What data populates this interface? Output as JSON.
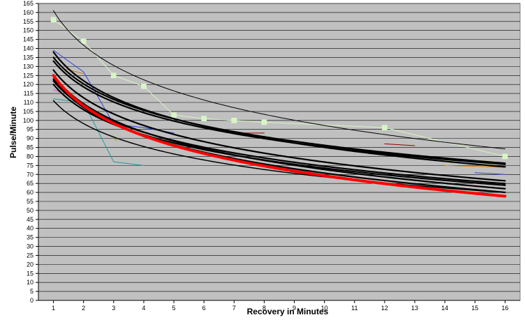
{
  "chart_data": {
    "type": "line",
    "title": "",
    "xlabel": "Recovery in Minutes",
    "ylabel": "Pulse/Minute",
    "xlim": [
      0.5,
      16.5
    ],
    "ylim": [
      0,
      165
    ],
    "x_ticks": [
      1,
      2,
      3,
      4,
      5,
      6,
      7,
      8,
      9,
      10,
      11,
      12,
      13,
      14,
      15,
      16
    ],
    "y_ticks": [
      0,
      5,
      10,
      15,
      20,
      25,
      30,
      35,
      40,
      45,
      50,
      55,
      60,
      65,
      70,
      75,
      80,
      85,
      90,
      95,
      100,
      105,
      110,
      115,
      120,
      125,
      130,
      135,
      140,
      145,
      150,
      155,
      160,
      165
    ],
    "grid": true,
    "legend": "none",
    "colors": {
      "plot_bg": "#c0c0c0",
      "grid": "#000000"
    },
    "series": [
      {
        "style": "raw",
        "color": "#d6f5c2",
        "width": 1,
        "marker": "square",
        "x": [
          1,
          2,
          3,
          4,
          5,
          6,
          7,
          8,
          12,
          16
        ],
        "y": [
          156,
          144,
          125,
          119,
          103,
          101,
          100,
          99,
          96,
          80
        ]
      },
      {
        "style": "raw",
        "color": "#2f3fe0",
        "width": 1,
        "x": [
          1,
          2,
          3,
          4,
          5
        ],
        "y": [
          139,
          127,
          98,
          96,
          93
        ]
      },
      {
        "style": "raw",
        "color": "#1b9a9a",
        "width": 1,
        "x": [
          1,
          2,
          3,
          4
        ],
        "y": [
          112,
          110,
          77,
          75
        ]
      },
      {
        "style": "raw",
        "color": "#c07010",
        "width": 1,
        "x": [
          1.3,
          2
        ],
        "y": [
          129,
          126
        ]
      },
      {
        "style": "raw",
        "color": "#e040e0",
        "width": 1,
        "x": [
          1,
          1.2
        ],
        "y": [
          117,
          116
        ]
      },
      {
        "style": "raw",
        "color": "#a0a000",
        "width": 1,
        "x": [
          3,
          3.1
        ],
        "y": [
          90,
          89
        ]
      },
      {
        "style": "raw",
        "color": "#8b0000",
        "width": 1,
        "x": [
          7,
          8
        ],
        "y": [
          93,
          93
        ]
      },
      {
        "style": "raw",
        "color": "#8b0000",
        "width": 1,
        "x": [
          12,
          13
        ],
        "y": [
          87,
          86
        ]
      },
      {
        "style": "raw",
        "color": "#e08000",
        "width": 1,
        "x": [
          14,
          16
        ],
        "y": [
          75,
          74
        ]
      },
      {
        "style": "raw",
        "color": "#2f3fe0",
        "width": 1,
        "x": [
          15,
          16
        ],
        "y": [
          71,
          70
        ]
      },
      {
        "style": "trend",
        "color": "#000000",
        "width": 1,
        "a": 161,
        "b": -27.7
      },
      {
        "style": "trend",
        "color": "#000000",
        "width": 2.2,
        "a": 135,
        "b": -21.2
      },
      {
        "style": "trend",
        "color": "#000000",
        "width": 2.2,
        "a": 133,
        "b": -20.7
      },
      {
        "style": "trend",
        "color": "#000000",
        "width": 2.2,
        "a": 138,
        "b": -23.0
      },
      {
        "style": "trend",
        "color": "#000000",
        "width": 2.2,
        "a": 128,
        "b": -22.2
      },
      {
        "style": "trend",
        "color": "#000000",
        "width": 2.2,
        "a": 122,
        "b": -20.6
      },
      {
        "style": "trend",
        "color": "#000000",
        "width": 2.2,
        "a": 120,
        "b": -20.2
      },
      {
        "style": "trend",
        "color": "#000000",
        "width": 2.2,
        "a": 125,
        "b": -22.7
      },
      {
        "style": "trend",
        "color": "#000000",
        "width": 2.2,
        "a": 123,
        "b": -22.7
      },
      {
        "style": "trend",
        "color": "#000000",
        "width": 1.5,
        "a": 111,
        "b": -18.4
      },
      {
        "style": "trend",
        "color": "#ff0000",
        "width": 4,
        "a": 125,
        "b": -24.2
      }
    ]
  }
}
